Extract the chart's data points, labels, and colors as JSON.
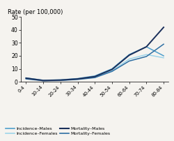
{
  "x_labels": [
    "0-4",
    "10-14",
    "20-24",
    "30-34",
    "40-44",
    "50-54",
    "60-64",
    "70-74",
    "80-84"
  ],
  "x_positions": [
    0,
    1,
    2,
    3,
    4,
    5,
    6,
    7,
    8
  ],
  "incidence_males": [
    3.0,
    1.2,
    1.5,
    2.5,
    4.5,
    10.0,
    21.0,
    27.0,
    20.0
  ],
  "incidence_females": [
    2.5,
    1.0,
    1.2,
    2.0,
    3.5,
    8.5,
    17.5,
    21.0,
    18.5
  ],
  "mortality_males": [
    2.8,
    1.0,
    1.3,
    2.2,
    4.0,
    9.5,
    20.5,
    27.0,
    42.0
  ],
  "mortality_females": [
    2.2,
    0.8,
    1.0,
    1.8,
    3.2,
    8.0,
    16.0,
    19.5,
    29.0
  ],
  "color_inc_males": "#4f9fcc",
  "color_inc_females": "#9dd4ea",
  "color_mort_males": "#1a2f5a",
  "color_mort_females": "#2e6fa3",
  "title": "Rate (per 100,000)",
  "ylim": [
    0,
    50
  ],
  "yticks": [
    0,
    10,
    20,
    30,
    40,
    50
  ],
  "background": "#f5f3ef"
}
